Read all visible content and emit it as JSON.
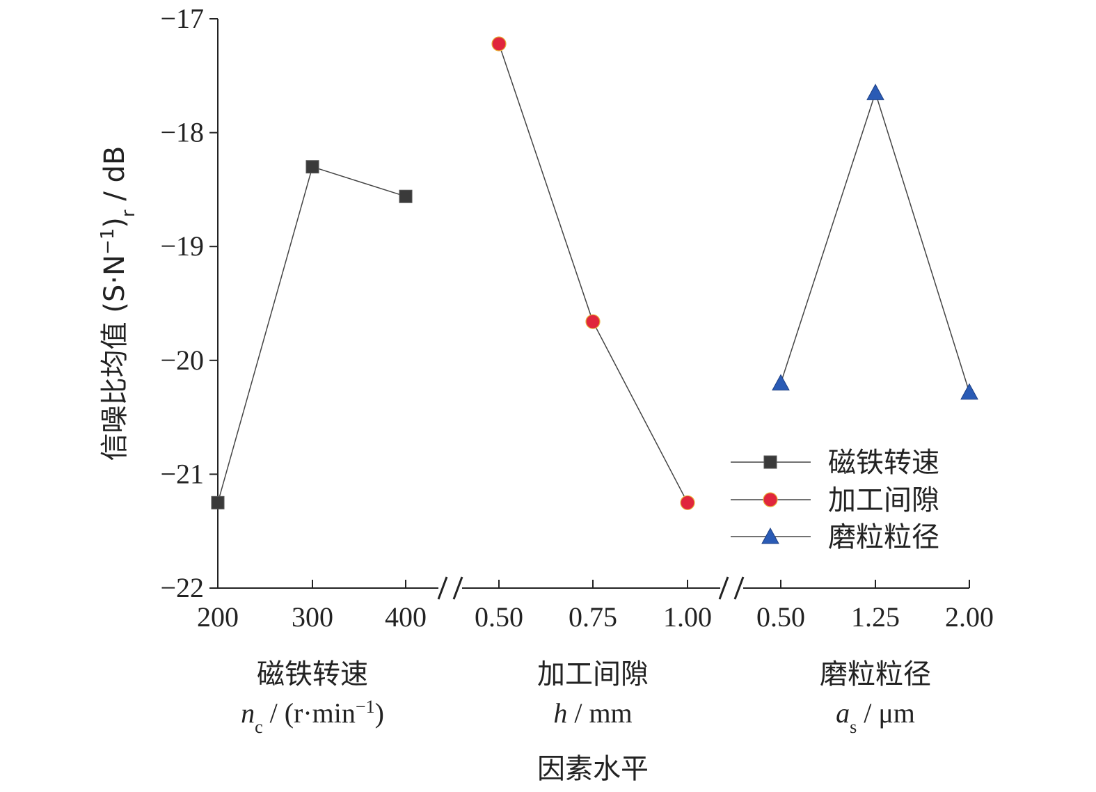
{
  "chart_data": {
    "type": "line",
    "ylabel": "信噪比均值 (S·N⁻¹)r / dB",
    "ylabel_parts": {
      "main": "信噪比均值 (S·N",
      "sup": "−1",
      "close": ")",
      "sub": "r",
      "tail": " / dB"
    },
    "xlabel": "因素水平",
    "ylim": [
      -22,
      -17
    ],
    "yticks": [
      "−22",
      "−21",
      "−20",
      "−19",
      "−18",
      "−17"
    ],
    "yticks_values": [
      -22,
      -21,
      -20,
      -19,
      -18,
      -17
    ],
    "grid": false,
    "legend_position": "lower-right",
    "groups": [
      {
        "name": "磁铁转速",
        "unit": {
          "var": "n",
          "sub": "c",
          "rest": " / (r·min",
          "sup": "−1",
          "close": ")"
        },
        "categories": [
          "200",
          "300",
          "400"
        ],
        "values": [
          -21.25,
          -18.3,
          -18.56
        ],
        "marker": "square",
        "color": "#3a3a3a"
      },
      {
        "name": "加工间隙",
        "unit": {
          "var": "h",
          "sub": "",
          "rest": " / mm",
          "sup": "",
          "close": ""
        },
        "categories": [
          "0.50",
          "0.75",
          "1.00"
        ],
        "values": [
          -17.22,
          -19.66,
          -21.25
        ],
        "marker": "circle",
        "color": "#e0263c"
      },
      {
        "name": "磨粒粒径",
        "unit": {
          "var": "a",
          "sub": "s",
          "rest": " / μm",
          "sup": "",
          "close": ""
        },
        "categories": [
          "0.50",
          "1.25",
          "2.00"
        ],
        "values": [
          -20.2,
          -17.65,
          -20.28
        ],
        "marker": "triangle",
        "color": "#2a5bb5"
      }
    ],
    "legend": [
      "磁铁转速",
      "加工间隙",
      "磨粒粒径"
    ]
  }
}
